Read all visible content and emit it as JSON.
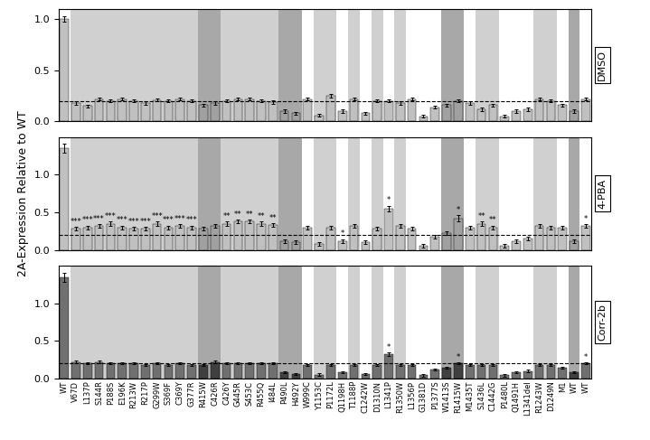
{
  "chart_data": [
    {
      "type": "bar",
      "title": "DMSO",
      "categories": [
        "WT",
        "V67D",
        "L137P",
        "S144R",
        "P188S",
        "E196K",
        "R213W",
        "R217P",
        "G299W",
        "S369F",
        "C369Y",
        "G377R",
        "R415W",
        "C426R",
        "C426Y",
        "G445R",
        "S453C",
        "R455Q",
        "I484L",
        "P490L",
        "H492Y",
        "W999C",
        "Y1153C",
        "P1172L",
        "Q1198H",
        "T1188P",
        "C1242W",
        "D1310N",
        "L1341P",
        "R1350W",
        "L1356P",
        "G1381D",
        "P1377S",
        "W1413S",
        "R1415W",
        "M1435T",
        "S1436L",
        "C1442G",
        "P1480L",
        "Q1491H",
        "L1341del",
        "R1243W",
        "D1249N",
        "M1",
        "WT",
        "WT"
      ],
      "values": [
        1.0,
        0.18,
        0.15,
        0.22,
        0.2,
        0.22,
        0.2,
        0.18,
        0.21,
        0.2,
        0.22,
        0.2,
        0.16,
        0.18,
        0.2,
        0.22,
        0.22,
        0.2,
        0.19,
        0.1,
        0.08,
        0.22,
        0.06,
        0.25,
        0.1,
        0.22,
        0.08,
        0.2,
        0.2,
        0.18,
        0.22,
        0.05,
        0.14,
        0.16,
        0.2,
        0.18,
        0.12,
        0.16,
        0.05,
        0.1,
        0.12,
        0.22,
        0.2,
        0.16,
        0.1,
        0.22
      ],
      "errors": [
        0.03,
        0.015,
        0.015,
        0.015,
        0.015,
        0.015,
        0.015,
        0.015,
        0.015,
        0.015,
        0.015,
        0.015,
        0.015,
        0.015,
        0.015,
        0.015,
        0.015,
        0.015,
        0.015,
        0.015,
        0.015,
        0.015,
        0.015,
        0.015,
        0.015,
        0.015,
        0.015,
        0.015,
        0.015,
        0.015,
        0.015,
        0.015,
        0.015,
        0.015,
        0.015,
        0.015,
        0.015,
        0.015,
        0.015,
        0.015,
        0.015,
        0.015,
        0.015,
        0.015,
        0.015,
        0.015
      ],
      "colors": [
        "#c0c0c0",
        "#c0c0c0",
        "#c0c0c0",
        "#c0c0c0",
        "#c0c0c0",
        "#c0c0c0",
        "#c0c0c0",
        "#c0c0c0",
        "#c0c0c0",
        "#c0c0c0",
        "#c0c0c0",
        "#c0c0c0",
        "#a0a0a0",
        "#a0a0a0",
        "#c0c0c0",
        "#c0c0c0",
        "#c0c0c0",
        "#c0c0c0",
        "#c0c0c0",
        "#a0a0a0",
        "#a0a0a0",
        "#c0c0c0",
        "#c0c0c0",
        "#c0c0c0",
        "#c0c0c0",
        "#c0c0c0",
        "#c0c0c0",
        "#c0c0c0",
        "#c0c0c0",
        "#c0c0c0",
        "#c0c0c0",
        "#c0c0c0",
        "#c0c0c0",
        "#a0a0a0",
        "#a0a0a0",
        "#c0c0c0",
        "#c0c0c0",
        "#c0c0c0",
        "#c0c0c0",
        "#c0c0c0",
        "#c0c0c0",
        "#c0c0c0",
        "#c0c0c0",
        "#c0c0c0",
        "#a0a0a0",
        "#c0c0c0"
      ],
      "bands": [
        {
          "indices": [
            1,
            2,
            3,
            4,
            5,
            6,
            7,
            8,
            9,
            10,
            11,
            14,
            15,
            16,
            17,
            18,
            22,
            23,
            25,
            27,
            29,
            36,
            37,
            41,
            42
          ],
          "color": "#d0d0d0"
        },
        {
          "indices": [
            12,
            13,
            19,
            20,
            33,
            34,
            44
          ],
          "color": "#a8a8a8"
        }
      ],
      "reference_line": 0.2,
      "ylim": [
        0,
        1.1
      ],
      "yticks": [
        {
          "value": 0,
          "label": "0.0"
        },
        {
          "value": 0.5,
          "label": "0.5"
        },
        {
          "value": 1,
          "label": "1.0"
        }
      ],
      "tick_labels": "y",
      "annotations": []
    },
    {
      "type": "bar",
      "title": "4-PBA",
      "y_label": "2A-Expression Relative to WT",
      "categories": [
        "WT",
        "V67D",
        "L137P",
        "S144R",
        "P188S",
        "E196K",
        "R213W",
        "R217P",
        "G299W",
        "S369F",
        "C369Y",
        "G377R",
        "R415W",
        "C426R",
        "C426Y",
        "G445R",
        "S453C",
        "R455Q",
        "I484L",
        "P490L",
        "H492Y",
        "W999C",
        "Y1153C",
        "P1172L",
        "Q1198H",
        "T1188P",
        "C1242W",
        "D1310N",
        "L1341P",
        "R1350W",
        "L1356P",
        "G1381D",
        "P1377S",
        "W1413S",
        "R1415W",
        "M1435T",
        "S1436L",
        "C1442G",
        "P1480L",
        "Q1491H",
        "L1341del",
        "R1243W",
        "D1249N",
        "M1",
        "WT",
        "WT"
      ],
      "values": [
        1.35,
        0.28,
        0.3,
        0.32,
        0.35,
        0.3,
        0.28,
        0.28,
        0.35,
        0.3,
        0.32,
        0.3,
        0.28,
        0.32,
        0.35,
        0.38,
        0.38,
        0.35,
        0.33,
        0.12,
        0.1,
        0.3,
        0.08,
        0.3,
        0.12,
        0.32,
        0.1,
        0.28,
        0.55,
        0.32,
        0.28,
        0.06,
        0.18,
        0.22,
        0.42,
        0.3,
        0.35,
        0.3,
        0.06,
        0.12,
        0.15,
        0.32,
        0.3,
        0.3,
        0.12,
        0.32
      ],
      "errors": [
        0.06,
        0.025,
        0.025,
        0.025,
        0.025,
        0.025,
        0.025,
        0.025,
        0.025,
        0.025,
        0.025,
        0.025,
        0.025,
        0.025,
        0.025,
        0.025,
        0.025,
        0.025,
        0.025,
        0.025,
        0.025,
        0.025,
        0.025,
        0.025,
        0.025,
        0.025,
        0.025,
        0.025,
        0.04,
        0.025,
        0.025,
        0.025,
        0.025,
        0.025,
        0.04,
        0.025,
        0.025,
        0.025,
        0.025,
        0.025,
        0.025,
        0.025,
        0.025,
        0.025,
        0.025,
        0.025
      ],
      "colors": [
        "#c0c0c0",
        "#c0c0c0",
        "#c0c0c0",
        "#c0c0c0",
        "#c0c0c0",
        "#c0c0c0",
        "#c0c0c0",
        "#c0c0c0",
        "#c0c0c0",
        "#c0c0c0",
        "#c0c0c0",
        "#c0c0c0",
        "#a0a0a0",
        "#a0a0a0",
        "#c0c0c0",
        "#c0c0c0",
        "#c0c0c0",
        "#c0c0c0",
        "#c0c0c0",
        "#a0a0a0",
        "#a0a0a0",
        "#c0c0c0",
        "#c0c0c0",
        "#c0c0c0",
        "#c0c0c0",
        "#c0c0c0",
        "#c0c0c0",
        "#c0c0c0",
        "#c0c0c0",
        "#c0c0c0",
        "#c0c0c0",
        "#c0c0c0",
        "#c0c0c0",
        "#a0a0a0",
        "#a0a0a0",
        "#c0c0c0",
        "#c0c0c0",
        "#c0c0c0",
        "#c0c0c0",
        "#c0c0c0",
        "#c0c0c0",
        "#c0c0c0",
        "#c0c0c0",
        "#c0c0c0",
        "#a0a0a0",
        "#c0c0c0"
      ],
      "bands": [
        {
          "indices": [
            1,
            2,
            3,
            4,
            5,
            6,
            7,
            8,
            9,
            10,
            11,
            14,
            15,
            16,
            17,
            18,
            22,
            23,
            25,
            27,
            29,
            36,
            37,
            41,
            42
          ],
          "color": "#d0d0d0"
        },
        {
          "indices": [
            12,
            13,
            19,
            20,
            33,
            34,
            44
          ],
          "color": "#a8a8a8"
        }
      ],
      "reference_line": 0.2,
      "ylim": [
        0,
        1.5
      ],
      "yticks": [
        {
          "value": 0,
          "label": "0.0"
        },
        {
          "value": 0.5,
          "label": "0.5"
        },
        {
          "value": 1,
          "label": "1.0"
        }
      ],
      "tick_labels": "y",
      "annotations": [
        {
          "index": 1,
          "text": "***"
        },
        {
          "index": 2,
          "text": "***"
        },
        {
          "index": 3,
          "text": "***"
        },
        {
          "index": 4,
          "text": "***"
        },
        {
          "index": 5,
          "text": "***"
        },
        {
          "index": 6,
          "text": "***"
        },
        {
          "index": 7,
          "text": "***"
        },
        {
          "index": 8,
          "text": "***"
        },
        {
          "index": 9,
          "text": "***"
        },
        {
          "index": 10,
          "text": "***"
        },
        {
          "index": 11,
          "text": "***"
        },
        {
          "index": 14,
          "text": "**"
        },
        {
          "index": 15,
          "text": "**"
        },
        {
          "index": 16,
          "text": "**"
        },
        {
          "index": 17,
          "text": "**"
        },
        {
          "index": 18,
          "text": "**"
        },
        {
          "index": 24,
          "text": "*"
        },
        {
          "index": 28,
          "text": "*"
        },
        {
          "index": 34,
          "text": "*"
        },
        {
          "index": 36,
          "text": "**"
        },
        {
          "index": 37,
          "text": "**"
        },
        {
          "index": 45,
          "text": "*"
        }
      ]
    },
    {
      "type": "bar",
      "title": "Corr-2b",
      "categories": [
        "WT",
        "V67D",
        "L137P",
        "S144R",
        "P188S",
        "E196K",
        "R213W",
        "R217P",
        "G299W",
        "S369F",
        "C369Y",
        "G377R",
        "R415W",
        "C426R",
        "C426Y",
        "G445R",
        "S453C",
        "R455Q",
        "I484L",
        "P490L",
        "H492Y",
        "W999C",
        "Y1153C",
        "P1172L",
        "Q1198H",
        "T1188P",
        "C1242W",
        "D1310N",
        "L1341P",
        "R1350W",
        "L1356P",
        "G1381D",
        "P1377S",
        "W1413S",
        "R1415W",
        "M1435T",
        "S1436L",
        "C1442G",
        "P1480L",
        "Q1491H",
        "L1341del",
        "R1243W",
        "D1249N",
        "M1",
        "WT",
        "WT"
      ],
      "values": [
        1.35,
        0.22,
        0.2,
        0.22,
        0.2,
        0.2,
        0.2,
        0.18,
        0.2,
        0.18,
        0.2,
        0.18,
        0.18,
        0.22,
        0.2,
        0.2,
        0.2,
        0.2,
        0.2,
        0.08,
        0.06,
        0.18,
        0.05,
        0.18,
        0.08,
        0.18,
        0.06,
        0.18,
        0.32,
        0.18,
        0.18,
        0.04,
        0.12,
        0.14,
        0.2,
        0.18,
        0.18,
        0.18,
        0.04,
        0.08,
        0.1,
        0.18,
        0.18,
        0.14,
        0.08,
        0.2
      ],
      "errors": [
        0.06,
        0.015,
        0.015,
        0.015,
        0.015,
        0.015,
        0.015,
        0.015,
        0.015,
        0.015,
        0.015,
        0.015,
        0.015,
        0.015,
        0.015,
        0.015,
        0.015,
        0.015,
        0.015,
        0.015,
        0.015,
        0.015,
        0.015,
        0.015,
        0.015,
        0.015,
        0.015,
        0.015,
        0.025,
        0.015,
        0.015,
        0.015,
        0.015,
        0.015,
        0.015,
        0.015,
        0.015,
        0.015,
        0.015,
        0.015,
        0.015,
        0.015,
        0.015,
        0.015,
        0.015,
        0.015
      ],
      "colors": [
        "#707070",
        "#707070",
        "#707070",
        "#707070",
        "#707070",
        "#707070",
        "#707070",
        "#707070",
        "#707070",
        "#707070",
        "#707070",
        "#707070",
        "#404040",
        "#404040",
        "#707070",
        "#707070",
        "#707070",
        "#707070",
        "#707070",
        "#404040",
        "#404040",
        "#707070",
        "#707070",
        "#707070",
        "#707070",
        "#707070",
        "#707070",
        "#707070",
        "#707070",
        "#707070",
        "#707070",
        "#707070",
        "#707070",
        "#404040",
        "#404040",
        "#707070",
        "#707070",
        "#707070",
        "#707070",
        "#707070",
        "#707070",
        "#707070",
        "#707070",
        "#707070",
        "#404040",
        "#707070"
      ],
      "bands": [
        {
          "indices": [
            1,
            2,
            3,
            4,
            5,
            6,
            7,
            8,
            9,
            10,
            11,
            14,
            15,
            16,
            17,
            18,
            22,
            23,
            25,
            27,
            29,
            36,
            37,
            41,
            42
          ],
          "color": "#d0d0d0"
        },
        {
          "indices": [
            12,
            13,
            19,
            20,
            33,
            34,
            44
          ],
          "color": "#a8a8a8"
        }
      ],
      "reference_line": 0.2,
      "ylim": [
        0,
        1.5
      ],
      "yticks": [
        {
          "value": 0,
          "label": "0.0"
        },
        {
          "value": 0.5,
          "label": "0.5"
        },
        {
          "value": 1,
          "label": "1.0"
        }
      ],
      "tick_labels": true,
      "annotations": [
        {
          "index": 28,
          "text": "*"
        },
        {
          "index": 34,
          "text": "*"
        },
        {
          "index": 45,
          "text": "*"
        }
      ]
    }
  ]
}
